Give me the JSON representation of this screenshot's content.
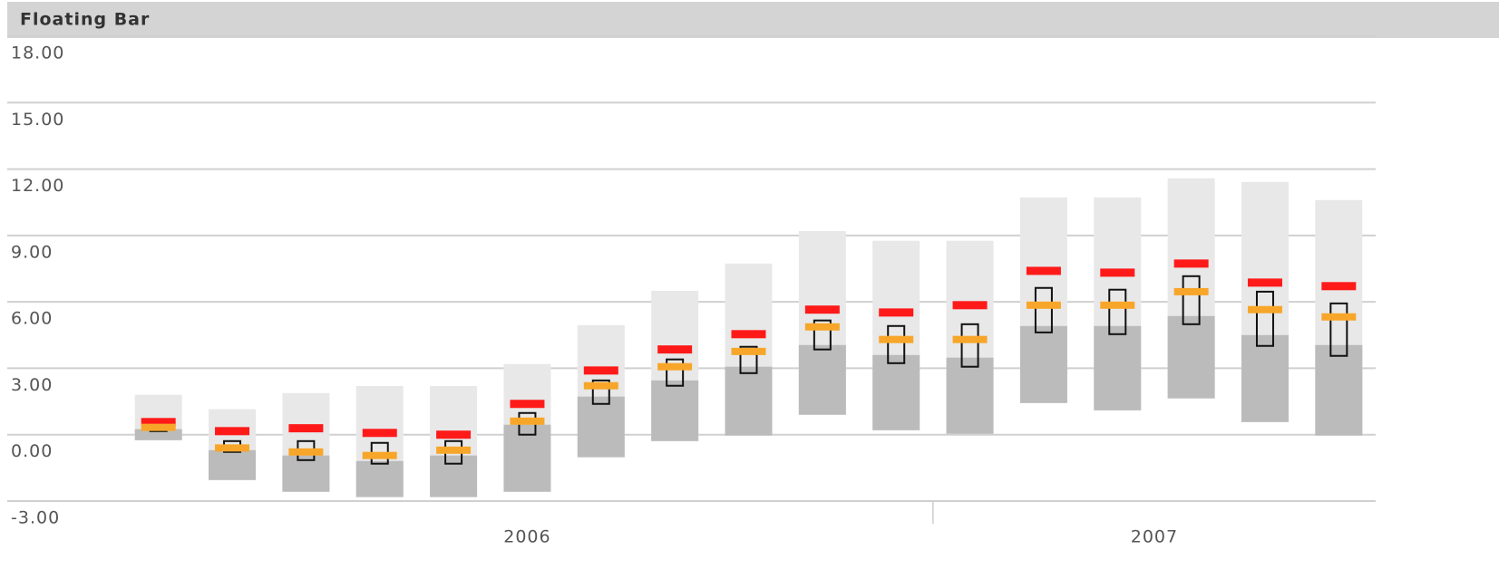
{
  "chart_data": {
    "type": "floating-bar",
    "title": "Floating Bar",
    "ylim": [
      -3,
      18
    ],
    "yticks": [
      {
        "value": -3,
        "label": "-3.00"
      },
      {
        "value": 0,
        "label": "0.00"
      },
      {
        "value": 3,
        "label": "3.00"
      },
      {
        "value": 6,
        "label": "6.00"
      },
      {
        "value": 9,
        "label": "9.00"
      },
      {
        "value": 12,
        "label": "12.00"
      },
      {
        "value": 15,
        "label": "15.00"
      },
      {
        "value": 18,
        "label": "18.00"
      }
    ],
    "grid": true,
    "categories": [
      null,
      null,
      null,
      null,
      null,
      null,
      null,
      null,
      null,
      null,
      null,
      null,
      null,
      null,
      null,
      null,
      null
    ],
    "year_groups": [
      {
        "label": "2006",
        "count": 11
      },
      {
        "label": "2007",
        "count": 6
      }
    ],
    "colors": {
      "light": "#e8e8e8",
      "dark": "#bbbbbb",
      "red": "#ff1a1a",
      "orange": "#f7a62a",
      "box": "#111111"
    },
    "bars": [
      {
        "light": [
          -0.25,
          1.8
        ],
        "dark": [
          -0.25,
          0.25
        ],
        "red": 0.57,
        "orange": 0.33,
        "box": [
          0.16,
          0.33
        ]
      },
      {
        "light": [
          -2.05,
          1.15
        ],
        "dark": [
          -2.05,
          -0.7
        ],
        "red": 0.16,
        "orange": -0.6,
        "box": [
          -0.78,
          -0.29
        ]
      },
      {
        "light": [
          -2.58,
          1.88
        ],
        "dark": [
          -2.58,
          -0.94
        ],
        "red": 0.29,
        "orange": -0.78,
        "box": [
          -1.15,
          -0.29
        ]
      },
      {
        "light": [
          -2.82,
          2.2
        ],
        "dark": [
          -2.82,
          -1.19
        ],
        "red": 0.08,
        "orange": -0.94,
        "box": [
          -1.31,
          -0.37
        ]
      },
      {
        "light": [
          -2.82,
          2.2
        ],
        "dark": [
          -2.82,
          -0.94
        ],
        "red": 0,
        "orange": -0.7,
        "box": [
          -1.31,
          -0.29
        ]
      },
      {
        "light": [
          -2.58,
          3.19
        ],
        "dark": [
          -2.58,
          0.45
        ],
        "red": 1.39,
        "orange": 0.61,
        "box": [
          0,
          0.98
        ]
      },
      {
        "light": [
          -1.02,
          4.95
        ],
        "dark": [
          -1.02,
          1.72
        ],
        "red": 2.9,
        "orange": 2.21,
        "box": [
          1.39,
          2.45
        ]
      },
      {
        "light": [
          -0.29,
          6.5
        ],
        "dark": [
          -0.29,
          2.45
        ],
        "red": 3.85,
        "orange": 3.07,
        "box": [
          2.21,
          3.4
        ]
      },
      {
        "light": [
          -0.04,
          7.73
        ],
        "dark": [
          -0.04,
          3.07
        ],
        "red": 4.54,
        "orange": 3.76,
        "box": [
          2.78,
          3.97
        ]
      },
      {
        "light": [
          0.9,
          9.2
        ],
        "dark": [
          0.9,
          4.05
        ],
        "red": 5.65,
        "orange": 4.87,
        "box": [
          3.85,
          5.16
        ]
      },
      {
        "light": [
          0.2,
          8.76
        ],
        "dark": [
          0.2,
          3.6
        ],
        "red": 5.52,
        "orange": 4.3,
        "box": [
          3.23,
          4.91
        ]
      },
      {
        "light": [
          0.04,
          8.76
        ],
        "dark": [
          0.04,
          3.48
        ],
        "red": 5.85,
        "orange": 4.3,
        "box": [
          3.07,
          4.99
        ]
      },
      {
        "light": [
          1.43,
          10.72
        ],
        "dark": [
          1.43,
          4.91
        ],
        "red": 7.4,
        "orange": 5.85,
        "box": [
          4.62,
          6.63
        ]
      },
      {
        "light": [
          1.1,
          10.72
        ],
        "dark": [
          1.1,
          4.91
        ],
        "red": 7.32,
        "orange": 5.85,
        "box": [
          4.54,
          6.55
        ]
      },
      {
        "light": [
          1.64,
          11.58
        ],
        "dark": [
          1.64,
          5.36
        ],
        "red": 7.73,
        "orange": 6.46,
        "box": [
          4.99,
          7.16
        ]
      },
      {
        "light": [
          0.57,
          11.42
        ],
        "dark": [
          0.57,
          4.5
        ],
        "red": 6.87,
        "orange": 5.65,
        "box": [
          4.01,
          6.46
        ]
      },
      {
        "light": [
          -0.04,
          10.6
        ],
        "dark": [
          -0.04,
          4.05
        ],
        "red": 6.71,
        "orange": 5.32,
        "box": [
          3.56,
          5.93
        ]
      }
    ]
  }
}
